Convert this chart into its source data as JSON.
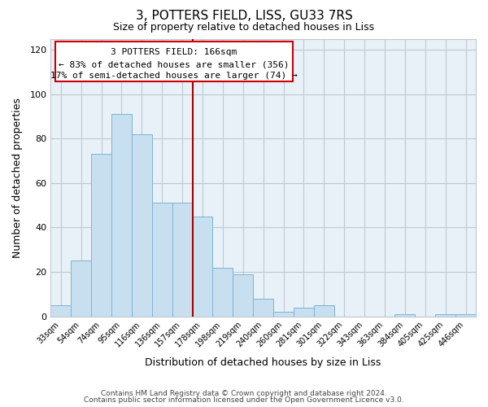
{
  "title": "3, POTTERS FIELD, LISS, GU33 7RS",
  "subtitle": "Size of property relative to detached houses in Liss",
  "xlabel": "Distribution of detached houses by size in Liss",
  "ylabel": "Number of detached properties",
  "footer_line1": "Contains HM Land Registry data © Crown copyright and database right 2024.",
  "footer_line2": "Contains public sector information licensed under the Open Government Licence v3.0.",
  "categories": [
    "33sqm",
    "54sqm",
    "74sqm",
    "95sqm",
    "116sqm",
    "136sqm",
    "157sqm",
    "178sqm",
    "198sqm",
    "219sqm",
    "240sqm",
    "260sqm",
    "281sqm",
    "301sqm",
    "322sqm",
    "343sqm",
    "363sqm",
    "384sqm",
    "405sqm",
    "425sqm",
    "446sqm"
  ],
  "values": [
    5,
    25,
    73,
    91,
    82,
    51,
    51,
    45,
    22,
    19,
    8,
    2,
    4,
    5,
    0,
    0,
    0,
    1,
    0,
    1,
    1
  ],
  "bar_color": "#c8dff0",
  "bar_edge_color": "#7fb3d3",
  "red_line_x": 6.5,
  "annotation_title": "3 POTTERS FIELD: 166sqm",
  "annotation_line1": "← 83% of detached houses are smaller (356)",
  "annotation_line2": "17% of semi-detached houses are larger (74) →",
  "annotation_box_color": "#ffffff",
  "annotation_box_edge": "#cc0000",
  "red_line_color": "#aa0000",
  "plot_bg_color": "#e8f0f8",
  "fig_bg_color": "#ffffff",
  "ylim": [
    0,
    125
  ],
  "yticks": [
    0,
    20,
    40,
    60,
    80,
    100,
    120
  ],
  "grid_color": "#c0c8d0"
}
